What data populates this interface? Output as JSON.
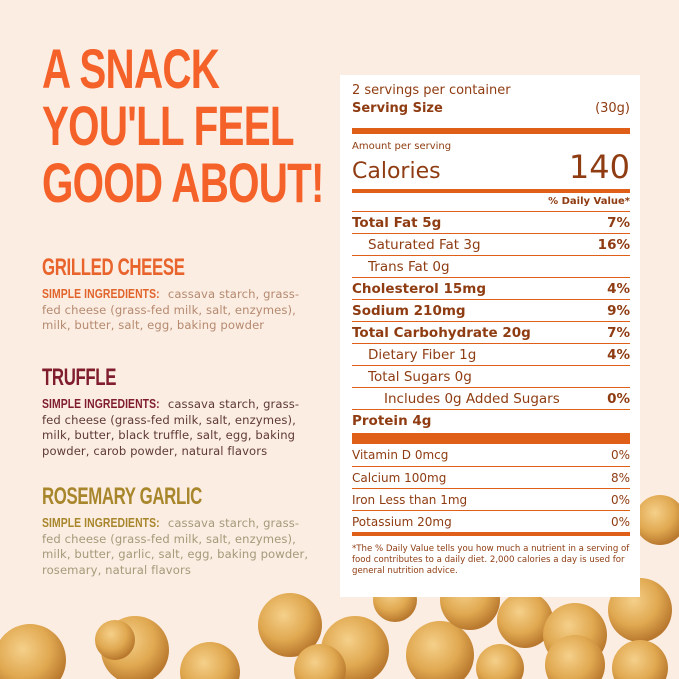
{
  "headline": [
    "A SNACK",
    "YOU'LL FEEL",
    "GOOD ABOUT!"
  ],
  "flavors": [
    {
      "name": "GRILLED CHEESE",
      "label": "SIMPLE INGREDIENTS:",
      "ingredients": "cassava starch, grass-fed cheese (grass-fed milk, salt, enzymes), milk, butter, salt, egg, baking powder",
      "color": "#e8642c",
      "text_color": "#b07a5c"
    },
    {
      "name": "TRUFFLE",
      "label": "SIMPLE INGREDIENTS:",
      "ingredients": "cassava starch, grass-fed cheese (grass-fed milk, salt, enzymes), milk, butter, black truffle, salt, egg, baking powder, carob powder, natural flavors",
      "color": "#7f1d2c",
      "text_color": "#5e3a36"
    },
    {
      "name": "ROSEMARY GARLIC",
      "label": "SIMPLE INGREDIENTS:",
      "ingredients": "cassava starch, grass-fed cheese (grass-fed milk, salt, enzymes), milk, butter, garlic, salt, egg, baking powder, rosemary, natural flavors",
      "color": "#a8862c",
      "text_color": "#a59a7a"
    }
  ],
  "nutrition": {
    "servings": "2 servings per container",
    "serving_size_label": "Serving Size",
    "serving_size": "(30g)",
    "amount_per_serving": "Amount per serving",
    "calories_label": "Calories",
    "calories": "140",
    "dv_header": "% Daily Value*",
    "rows": [
      {
        "name": "Total Fat 5g",
        "dv": "7%"
      },
      {
        "name": "Saturated Fat 3g",
        "dv": "16%"
      },
      {
        "name": "Trans Fat 0g",
        "dv": ""
      },
      {
        "name": "Cholesterol 15mg",
        "dv": "4%"
      },
      {
        "name": "Sodium 210mg",
        "dv": "9%"
      },
      {
        "name": "Total Carbohydrate 20g",
        "dv": "7%"
      },
      {
        "name": "Dietary Fiber 1g",
        "dv": "4%"
      },
      {
        "name": "Total Sugars 0g",
        "dv": ""
      },
      {
        "name": "Includes 0g Added Sugars",
        "dv": "0%"
      },
      {
        "name": "Protein 4g",
        "dv": ""
      }
    ],
    "vitamins": [
      {
        "name": "Vitamin D 0mcg",
        "dv": "0%"
      },
      {
        "name": "Calcium 100mg",
        "dv": "8%"
      },
      {
        "name": "Iron Less than 1mg",
        "dv": "0%"
      },
      {
        "name": "Potassium 20mg",
        "dv": "0%"
      }
    ],
    "footnote": "*The % Daily Value tells you how much a nutrient in a serving of food contributes to a daily diet. 2,000 calories a day is used for general nutrition advice."
  },
  "accent": "#df5f18"
}
